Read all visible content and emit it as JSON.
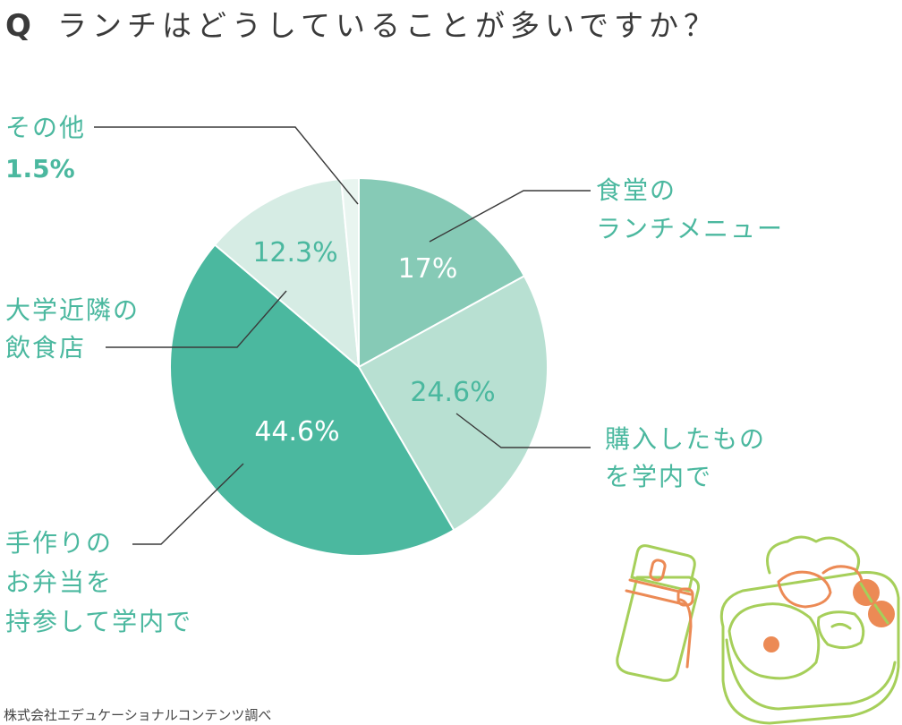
{
  "question": {
    "mark": "Q",
    "text": "ランチはどうしていることが多いですか？"
  },
  "source": "株式会社エデュケーショナルコンテンツ調べ",
  "colors": {
    "slice_1": "#86cab6",
    "slice_2": "#b8e0d2",
    "slice_3": "#4bb89f",
    "slice_4": "#d6ece4",
    "slice_5": "#e9f5f0",
    "accent_text": "#4bb89f",
    "leader_line": "#3a3a3a"
  },
  "chart_data": {
    "type": "pie",
    "title": "ランチはどうしていることが多いですか？",
    "start_angle_deg": 0,
    "direction": "clockwise",
    "slices": [
      {
        "label_lines": [
          "食堂の",
          "ランチメニュー"
        ],
        "value": 17,
        "value_label": "17%",
        "color": "#86cab6",
        "value_color": "#ffffff"
      },
      {
        "label_lines": [
          "購入したもの",
          "を学内で"
        ],
        "value": 24.6,
        "value_label": "24.6%",
        "color": "#b8e0d2",
        "value_color": "#4bb89f"
      },
      {
        "label_lines": [
          "手作りの",
          "お弁当を",
          "持参して学内で"
        ],
        "value": 44.6,
        "value_label": "44.6%",
        "color": "#4bb89f",
        "value_color": "#ffffff"
      },
      {
        "label_lines": [
          "大学近隣の",
          "飲食店"
        ],
        "value": 12.3,
        "value_label": "12.3%",
        "color": "#d6ece4",
        "value_color": "#4bb89f"
      },
      {
        "label_lines": [
          "その他"
        ],
        "value": 1.5,
        "value_label": "1.5%",
        "color": "#e9f5f0",
        "value_color": "#4bb89f"
      }
    ]
  }
}
